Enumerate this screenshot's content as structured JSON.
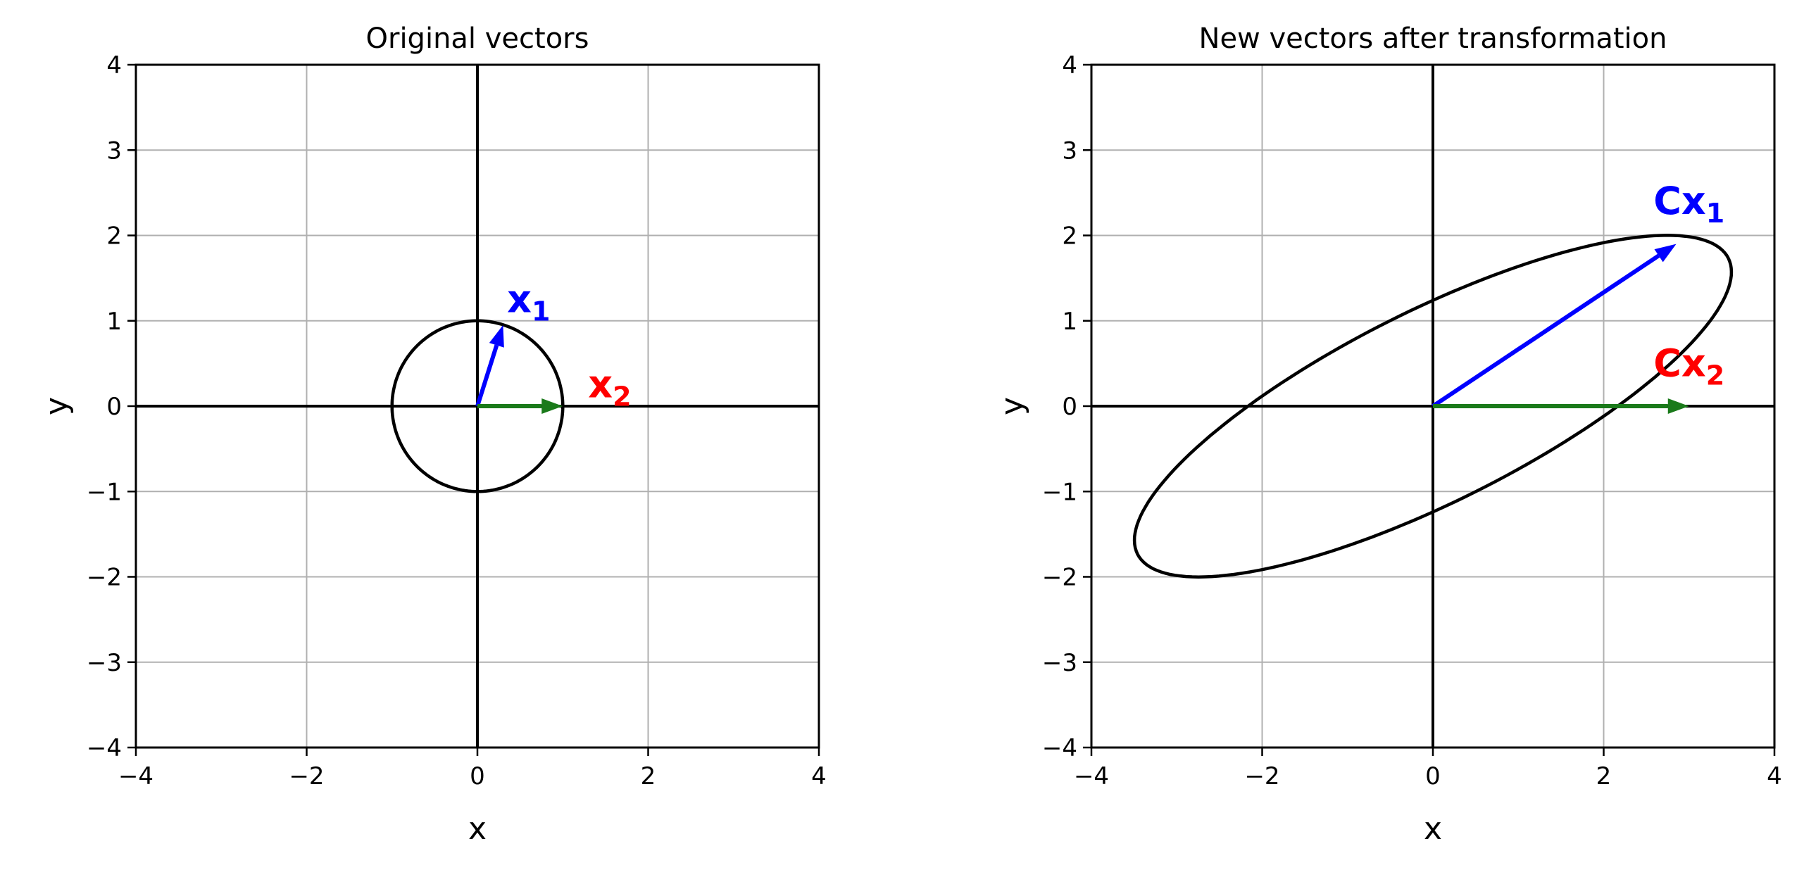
{
  "chart_data": [
    {
      "type": "line",
      "title": "Original vectors",
      "xlabel": "x",
      "ylabel": "y",
      "xlim": [
        -4,
        4
      ],
      "ylim": [
        -4,
        4
      ],
      "xticks": [
        -4,
        -2,
        0,
        2,
        4
      ],
      "yticks": [
        -4,
        -3,
        -2,
        -1,
        0,
        1,
        2,
        3,
        4
      ],
      "grid": true,
      "series": [
        {
          "kind": "ellipse",
          "center": [
            0,
            0
          ],
          "semi_axes": [
            1,
            1
          ],
          "rotation_deg": 0,
          "color": "#000000"
        }
      ],
      "arrows": [
        {
          "from": [
            0,
            0
          ],
          "to": [
            0.3,
            0.95
          ],
          "color": "#0000ff"
        },
        {
          "from": [
            0,
            0
          ],
          "to": [
            1,
            0
          ],
          "color": "#1a7a1a"
        }
      ],
      "annotations": [
        {
          "base": "x",
          "sub": "1",
          "x": 0.6,
          "y": 1.25,
          "color": "#0000ff"
        },
        {
          "base": "x",
          "sub": "2",
          "x": 1.55,
          "y": 0.25,
          "color": "#ff0000"
        }
      ]
    },
    {
      "type": "line",
      "title": "New vectors after transformation",
      "xlabel": "x",
      "ylabel": "y",
      "xlim": [
        -4,
        4
      ],
      "ylim": [
        -4,
        4
      ],
      "xticks": [
        -4,
        -2,
        0,
        2,
        4
      ],
      "yticks": [
        -4,
        -3,
        -2,
        -1,
        0,
        1,
        2,
        3,
        4
      ],
      "grid": true,
      "series": [
        {
          "kind": "ellipse",
          "center": [
            0,
            0
          ],
          "semi_axes": [
            3.87,
            1.12
          ],
          "rotation_deg": 26.6,
          "color": "#000000"
        }
      ],
      "arrows": [
        {
          "from": [
            0,
            0
          ],
          "to": [
            2.85,
            1.9
          ],
          "color": "#0000ff"
        },
        {
          "from": [
            0,
            0
          ],
          "to": [
            3,
            0
          ],
          "color": "#1a7a1a"
        }
      ],
      "annotations": [
        {
          "base": "Cx",
          "sub": "1",
          "x": 3.0,
          "y": 2.4,
          "color": "#0000ff"
        },
        {
          "base": "Cx",
          "sub": "2",
          "x": 3.0,
          "y": 0.5,
          "color": "#ff0000"
        }
      ]
    }
  ]
}
